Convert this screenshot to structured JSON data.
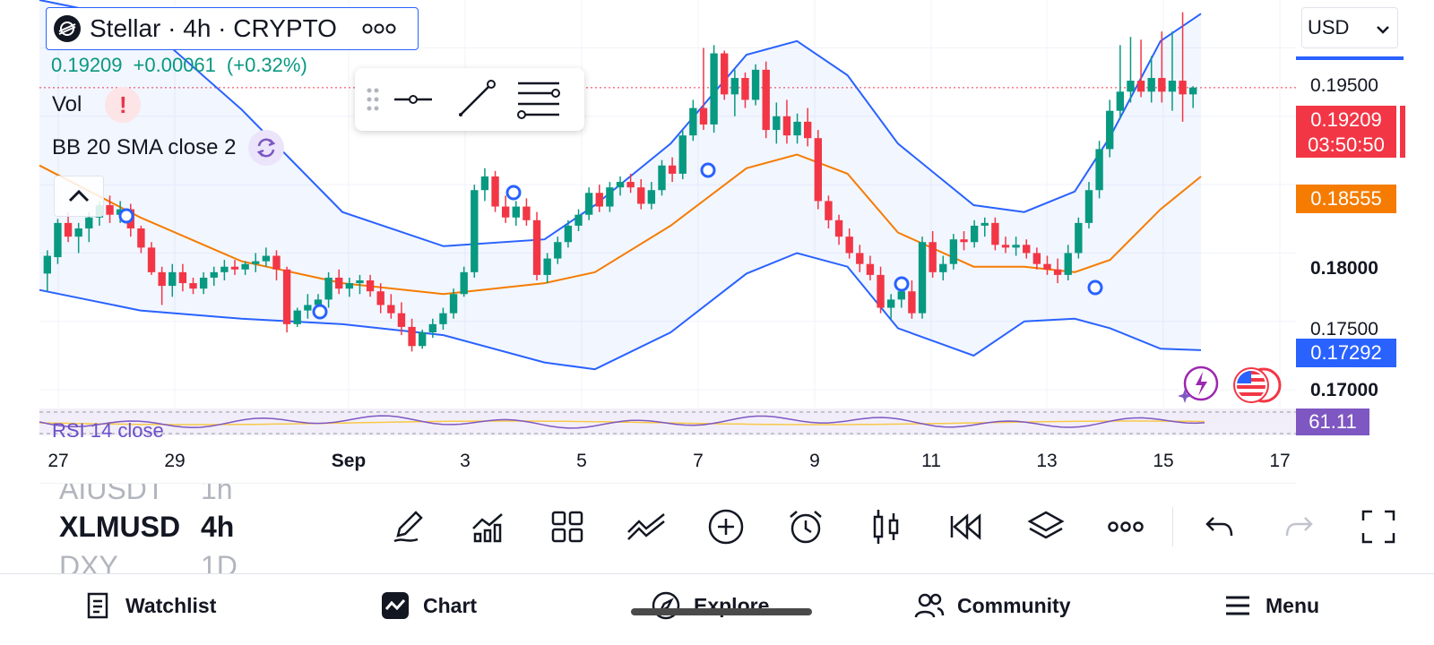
{
  "header": {
    "symbol_title": "Stellar · 4h · CRYPTO",
    "more_icon": "ellipsis-icon",
    "price": "0.19209",
    "change": "+0.00061",
    "change_pct": "(+0.32%)"
  },
  "indicators": {
    "vol": "Vol",
    "bb": "BB 20 SMA close 2",
    "rsi": "RSI 14 close"
  },
  "currency": {
    "selected": "USD"
  },
  "price_axis": {
    "labels": [
      "0.19500",
      "0.18000",
      "0.17500",
      "0.17000"
    ],
    "tag_last_price": "0.19209",
    "tag_countdown": "03:50:50",
    "tag_sma": "0.18555",
    "tag_lower_band": "0.17292",
    "tag_rsi": "61.11"
  },
  "time_axis": [
    "27",
    "29",
    "Sep",
    "3",
    "5",
    "7",
    "9",
    "11",
    "13",
    "15",
    "17"
  ],
  "symbol_picker": {
    "rows": [
      {
        "symbol": "AIUSDT",
        "interval": "1h"
      },
      {
        "symbol": "XLMUSD",
        "interval": "4h"
      },
      {
        "symbol": "DXY",
        "interval": "1D"
      }
    ]
  },
  "toolbar": {
    "icons": [
      "pencil-icon",
      "indicators-icon",
      "layouts-grid-icon",
      "compare-icon",
      "add-icon",
      "alert-clock-icon",
      "candle-type-icon",
      "replay-icon",
      "layers-icon",
      "more-icon",
      "undo-icon",
      "redo-icon",
      "fullscreen-icon"
    ]
  },
  "nav": {
    "watchlist": "Watchlist",
    "chart": "Chart",
    "explore": "Explore",
    "community": "Community",
    "menu": "Menu"
  },
  "colors": {
    "up": "#089981",
    "down": "#f23645",
    "band": "#2962ff",
    "sma": "#f57c00",
    "rsi": "#7e57c2"
  },
  "chart_data": {
    "type": "candlestick",
    "symbol": "XLMUSD",
    "interval": "4h",
    "ylim": [
      0.1687,
      0.1985
    ],
    "x_ticks": [
      "27",
      "29",
      "Sep",
      "3",
      "5",
      "7",
      "9",
      "11",
      "13",
      "15",
      "17"
    ],
    "candles_ohlc": [
      [
        0.1785,
        0.1802,
        0.1772,
        0.1798
      ],
      [
        0.1797,
        0.1825,
        0.1792,
        0.1822
      ],
      [
        0.1822,
        0.183,
        0.1808,
        0.1812
      ],
      [
        0.1812,
        0.1822,
        0.18,
        0.1818
      ],
      [
        0.1818,
        0.183,
        0.1808,
        0.1826
      ],
      [
        0.1826,
        0.1838,
        0.182,
        0.1835
      ],
      [
        0.1835,
        0.1842,
        0.1822,
        0.1828
      ],
      [
        0.1828,
        0.1838,
        0.1822,
        0.1832
      ],
      [
        0.1832,
        0.1836,
        0.1812,
        0.1818
      ],
      [
        0.1818,
        0.182,
        0.18,
        0.1804
      ],
      [
        0.1804,
        0.1808,
        0.1784,
        0.1786
      ],
      [
        0.1786,
        0.179,
        0.1762,
        0.1776
      ],
      [
        0.1776,
        0.1792,
        0.1768,
        0.1786
      ],
      [
        0.1786,
        0.1792,
        0.1772,
        0.1778
      ],
      [
        0.1778,
        0.1782,
        0.177,
        0.1774
      ],
      [
        0.1774,
        0.1786,
        0.177,
        0.1782
      ],
      [
        0.1782,
        0.179,
        0.1776,
        0.1786
      ],
      [
        0.1786,
        0.1795,
        0.178,
        0.179
      ],
      [
        0.179,
        0.1795,
        0.1784,
        0.1788
      ],
      [
        0.1788,
        0.1794,
        0.1784,
        0.1792
      ],
      [
        0.1792,
        0.18,
        0.1786,
        0.1794
      ],
      [
        0.1794,
        0.1804,
        0.179,
        0.1798
      ],
      [
        0.1798,
        0.1802,
        0.178,
        0.1788
      ],
      [
        0.1788,
        0.179,
        0.1742,
        0.1748
      ],
      [
        0.1748,
        0.176,
        0.1746,
        0.1758
      ],
      [
        0.1758,
        0.177,
        0.1752,
        0.1762
      ],
      [
        0.1762,
        0.177,
        0.1752,
        0.1766
      ],
      [
        0.1766,
        0.1786,
        0.176,
        0.1782
      ],
      [
        0.1782,
        0.1788,
        0.177,
        0.1774
      ],
      [
        0.1774,
        0.1782,
        0.1768,
        0.1778
      ],
      [
        0.1778,
        0.1784,
        0.177,
        0.178
      ],
      [
        0.178,
        0.1784,
        0.1768,
        0.1772
      ],
      [
        0.1772,
        0.1778,
        0.1756,
        0.1762
      ],
      [
        0.1762,
        0.177,
        0.1752,
        0.1756
      ],
      [
        0.1756,
        0.1764,
        0.174,
        0.1746
      ],
      [
        0.1746,
        0.1752,
        0.1728,
        0.1732
      ],
      [
        0.1732,
        0.1744,
        0.173,
        0.1742
      ],
      [
        0.1742,
        0.1752,
        0.1738,
        0.1748
      ],
      [
        0.1748,
        0.176,
        0.1744,
        0.1756
      ],
      [
        0.1756,
        0.1774,
        0.1752,
        0.177
      ],
      [
        0.177,
        0.179,
        0.1768,
        0.1786
      ],
      [
        0.1786,
        0.185,
        0.1782,
        0.1846
      ],
      [
        0.1846,
        0.1862,
        0.1838,
        0.1856
      ],
      [
        0.1856,
        0.186,
        0.183,
        0.1834
      ],
      [
        0.1834,
        0.1842,
        0.1822,
        0.1826
      ],
      [
        0.1826,
        0.1838,
        0.182,
        0.1834
      ],
      [
        0.1834,
        0.184,
        0.182,
        0.1824
      ],
      [
        0.1824,
        0.183,
        0.178,
        0.1784
      ],
      [
        0.1784,
        0.18,
        0.1778,
        0.1796
      ],
      [
        0.1796,
        0.1812,
        0.1792,
        0.1808
      ],
      [
        0.1808,
        0.1824,
        0.1804,
        0.182
      ],
      [
        0.182,
        0.1832,
        0.1816,
        0.1828
      ],
      [
        0.1828,
        0.1848,
        0.1824,
        0.1844
      ],
      [
        0.1844,
        0.185,
        0.183,
        0.1834
      ],
      [
        0.1834,
        0.1852,
        0.183,
        0.1848
      ],
      [
        0.1848,
        0.1856,
        0.1842,
        0.1852
      ],
      [
        0.1852,
        0.1858,
        0.1844,
        0.1848
      ],
      [
        0.1848,
        0.1854,
        0.1832,
        0.1836
      ],
      [
        0.1836,
        0.1852,
        0.1832,
        0.1846
      ],
      [
        0.1846,
        0.1868,
        0.1842,
        0.1864
      ],
      [
        0.1864,
        0.187,
        0.1852,
        0.1858
      ],
      [
        0.1858,
        0.189,
        0.1854,
        0.1886
      ],
      [
        0.1886,
        0.1912,
        0.1882,
        0.1906
      ],
      [
        0.1906,
        0.195,
        0.189,
        0.1894
      ],
      [
        0.1894,
        0.1952,
        0.1888,
        0.1946
      ],
      [
        0.1946,
        0.1948,
        0.1912,
        0.1916
      ],
      [
        0.1916,
        0.1934,
        0.19,
        0.1928
      ],
      [
        0.1928,
        0.1932,
        0.1906,
        0.1912
      ],
      [
        0.1912,
        0.1938,
        0.1908,
        0.1934
      ],
      [
        0.1934,
        0.194,
        0.1884,
        0.189
      ],
      [
        0.189,
        0.191,
        0.188,
        0.19
      ],
      [
        0.19,
        0.1912,
        0.188,
        0.1886
      ],
      [
        0.1886,
        0.1902,
        0.188,
        0.1896
      ],
      [
        0.1896,
        0.1906,
        0.1878,
        0.1884
      ],
      [
        0.1884,
        0.189,
        0.1832,
        0.1838
      ],
      [
        0.1838,
        0.1842,
        0.1818,
        0.1824
      ],
      [
        0.1824,
        0.1828,
        0.1806,
        0.1812
      ],
      [
        0.1812,
        0.1818,
        0.1796,
        0.18
      ],
      [
        0.18,
        0.1806,
        0.1786,
        0.1792
      ],
      [
        0.1792,
        0.1798,
        0.178,
        0.1784
      ],
      [
        0.1784,
        0.179,
        0.1756,
        0.176
      ],
      [
        0.176,
        0.177,
        0.1752,
        0.1766
      ],
      [
        0.1766,
        0.1776,
        0.176,
        0.1772
      ],
      [
        0.1772,
        0.178,
        0.1752,
        0.1756
      ],
      [
        0.1756,
        0.1812,
        0.1752,
        0.1808
      ],
      [
        0.1808,
        0.1816,
        0.1782,
        0.1786
      ],
      [
        0.1786,
        0.1798,
        0.178,
        0.1792
      ],
      [
        0.1792,
        0.1814,
        0.1788,
        0.181
      ],
      [
        0.181,
        0.1816,
        0.1802,
        0.1808
      ],
      [
        0.1808,
        0.1824,
        0.1804,
        0.182
      ],
      [
        0.182,
        0.1826,
        0.1812,
        0.1822
      ],
      [
        0.1822,
        0.1826,
        0.1802,
        0.1806
      ],
      [
        0.1806,
        0.1812,
        0.18,
        0.1804
      ],
      [
        0.1804,
        0.1812,
        0.1798,
        0.1806
      ],
      [
        0.1806,
        0.181,
        0.1796,
        0.18
      ],
      [
        0.18,
        0.1804,
        0.1788,
        0.1792
      ],
      [
        0.1792,
        0.1798,
        0.1784,
        0.1788
      ],
      [
        0.1788,
        0.1796,
        0.1778,
        0.1784
      ],
      [
        0.1784,
        0.1806,
        0.178,
        0.18
      ],
      [
        0.18,
        0.1826,
        0.1796,
        0.1822
      ],
      [
        0.1822,
        0.1852,
        0.1818,
        0.1846
      ],
      [
        0.1846,
        0.1882,
        0.184,
        0.1876
      ],
      [
        0.1876,
        0.1912,
        0.187,
        0.1904
      ],
      [
        0.1904,
        0.1952,
        0.1898,
        0.1918
      ],
      [
        0.1918,
        0.1958,
        0.191,
        0.1926
      ],
      [
        0.1926,
        0.1956,
        0.1914,
        0.1918
      ],
      [
        0.1918,
        0.1944,
        0.191,
        0.1928
      ],
      [
        0.1928,
        0.1962,
        0.191,
        0.1918
      ],
      [
        0.1918,
        0.1962,
        0.1904,
        0.1926
      ],
      [
        0.1926,
        0.1976,
        0.1896,
        0.1916
      ],
      [
        0.1916,
        0.1922,
        0.1906,
        0.1921
      ]
    ],
    "bb_upper_samples": [
      [
        0,
        0.1985
      ],
      [
        20,
        0.197
      ],
      [
        40,
        0.1905
      ],
      [
        60,
        0.183
      ],
      [
        80,
        0.1805
      ],
      [
        100,
        0.181
      ],
      [
        110,
        0.1835
      ],
      [
        125,
        0.188
      ],
      [
        140,
        0.1945
      ],
      [
        150,
        0.1955
      ],
      [
        160,
        0.193
      ],
      [
        170,
        0.188
      ],
      [
        185,
        0.1835
      ],
      [
        195,
        0.183
      ],
      [
        205,
        0.1845
      ],
      [
        212,
        0.1885
      ],
      [
        222,
        0.1955
      ],
      [
        230,
        0.1975
      ]
    ],
    "bb_lower_samples": [
      [
        0,
        0.1773
      ],
      [
        20,
        0.1758
      ],
      [
        40,
        0.1752
      ],
      [
        60,
        0.1748
      ],
      [
        80,
        0.174
      ],
      [
        100,
        0.172
      ],
      [
        110,
        0.1715
      ],
      [
        125,
        0.1742
      ],
      [
        140,
        0.1785
      ],
      [
        150,
        0.18
      ],
      [
        160,
        0.179
      ],
      [
        170,
        0.1745
      ],
      [
        185,
        0.1725
      ],
      [
        195,
        0.175
      ],
      [
        205,
        0.1752
      ],
      [
        212,
        0.1745
      ],
      [
        222,
        0.173
      ],
      [
        230,
        0.1729
      ]
    ],
    "bb_basis_samples": [
      [
        0,
        0.1864
      ],
      [
        20,
        0.1826
      ],
      [
        40,
        0.1794
      ],
      [
        60,
        0.1778
      ],
      [
        80,
        0.177
      ],
      [
        100,
        0.1778
      ],
      [
        110,
        0.1786
      ],
      [
        125,
        0.182
      ],
      [
        140,
        0.1862
      ],
      [
        150,
        0.1872
      ],
      [
        160,
        0.1858
      ],
      [
        170,
        0.1815
      ],
      [
        185,
        0.179
      ],
      [
        195,
        0.179
      ],
      [
        205,
        0.1786
      ],
      [
        212,
        0.1795
      ],
      [
        222,
        0.1832
      ],
      [
        230,
        0.1856
      ]
    ],
    "rsi_last": 61.11
  }
}
